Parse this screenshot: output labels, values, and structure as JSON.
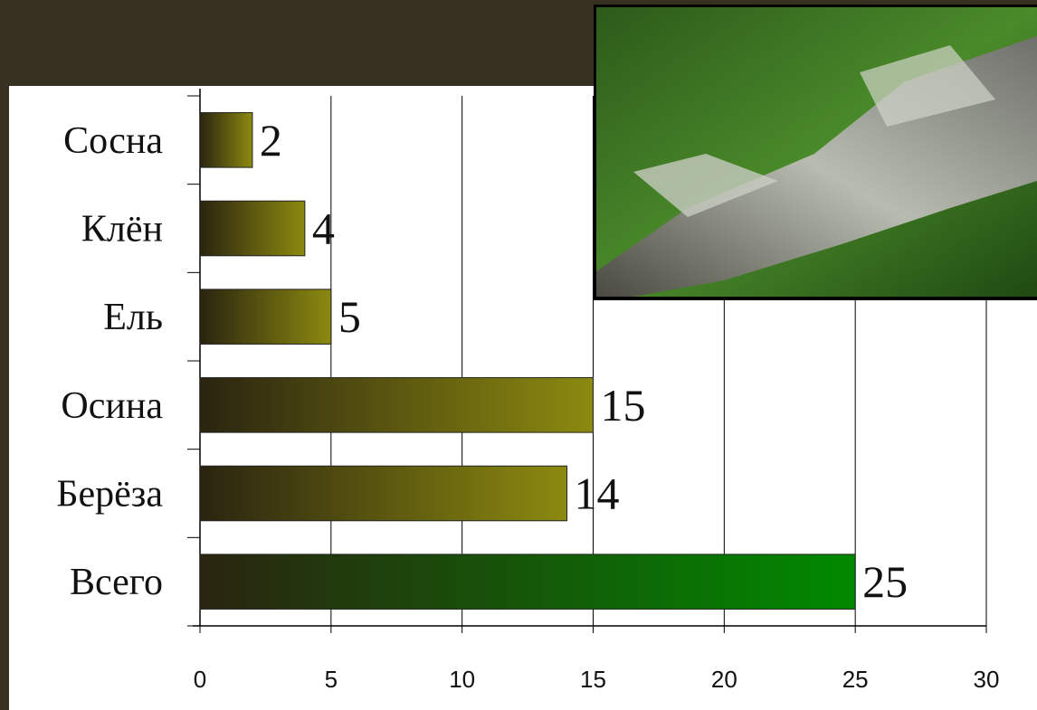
{
  "chart_data": {
    "type": "barh",
    "categories": [
      "Сосна",
      "Клён",
      "Ель",
      "Осина",
      "Берёза",
      "Всего"
    ],
    "values": [
      2,
      4,
      5,
      15,
      14,
      25
    ],
    "colors": [
      "#8c8a10",
      "#8c8a10",
      "#8c8a10",
      "#8c8a10",
      "#8c8a10",
      "#008a00"
    ],
    "xlim": [
      0,
      30
    ],
    "xticks": [
      0,
      5,
      10,
      15,
      20,
      25,
      30
    ],
    "grid": true
  }
}
